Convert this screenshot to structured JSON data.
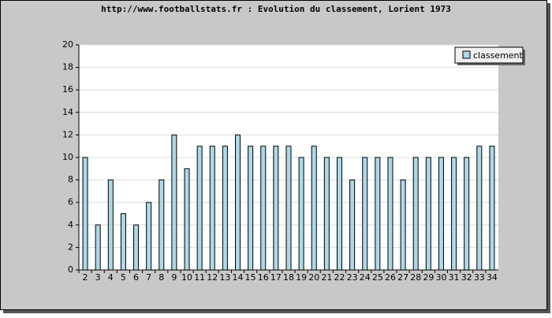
{
  "chart_data": {
    "type": "bar",
    "title": "http://www.footballstats.fr : Evolution du classement, Lorient 1973",
    "categories": [
      "2",
      "3",
      "4",
      "5",
      "6",
      "7",
      "8",
      "9",
      "10",
      "11",
      "12",
      "13",
      "14",
      "15",
      "16",
      "17",
      "18",
      "19",
      "20",
      "21",
      "22",
      "23",
      "24",
      "25",
      "26",
      "27",
      "28",
      "29",
      "30",
      "31",
      "32",
      "33",
      "34"
    ],
    "series": [
      {
        "name": "classement",
        "color": "#add8e6",
        "values": [
          10,
          4,
          8,
          5,
          4,
          6,
          8,
          12,
          9,
          11,
          11,
          11,
          12,
          11,
          11,
          11,
          11,
          10,
          11,
          10,
          10,
          8,
          10,
          10,
          10,
          8,
          10,
          10,
          10,
          10,
          10,
          11,
          11
        ]
      }
    ],
    "ylim": [
      0,
      20
    ],
    "yticks": [
      0,
      2,
      4,
      6,
      8,
      10,
      12,
      14,
      16,
      18,
      20
    ],
    "grid": true,
    "legend": "top-right"
  }
}
